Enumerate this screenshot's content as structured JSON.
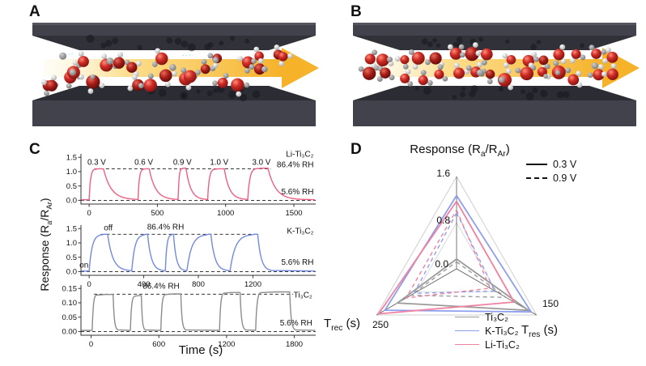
{
  "panels": {
    "a": {
      "label": "A"
    },
    "b": {
      "label": "B"
    },
    "c": {
      "label": "C",
      "y_axis_label": {
        "pre": "Response (R",
        "sub_a": "a",
        "mid": "/R",
        "sub_ar": "Ar",
        "post": ")"
      },
      "x_axis_label": "Time (s)"
    },
    "d": {
      "label": "D",
      "title": {
        "pre": "Response (R",
        "sub_a": "a",
        "mid": "/R",
        "sub_ar": "Ar",
        "post": ")"
      },
      "axis_trec": {
        "pre": "T",
        "sub": "rec",
        "post": " (s)"
      },
      "axis_tres": {
        "pre": "T",
        "sub": "res",
        "post": " (s)"
      },
      "response_ticks": [
        "1.6",
        "0.8",
        "0.0"
      ],
      "tres_tick": "150",
      "trec_tick": "250",
      "voltage_legend": [
        {
          "label": "0.3 V",
          "style": "solid"
        },
        {
          "label": "0.9 V",
          "style": "dashed"
        }
      ],
      "material_legend": [
        {
          "label": "Ti₃C₂",
          "color": "#9b9b9b"
        },
        {
          "label": "K-Ti₃C₂",
          "color": "#8e9ff0"
        },
        {
          "label": "Li-Ti₃C₂",
          "color": "#f082a0"
        }
      ]
    }
  },
  "illustration": {
    "arrow_color": "#f6b32a",
    "slab_color": "#41424b",
    "wedge_color": "#303139",
    "oxygen_color": "#cf2b24",
    "hydrogen_color": "#ececec",
    "gray_atom_color": "#9a9a9a",
    "panel_a": {
      "molecule_count": 24,
      "layout": "scatter",
      "seed": 7
    },
    "panel_b": {
      "molecule_count": 30,
      "layout": "rows",
      "seed": 13
    }
  },
  "chart_data": [
    {
      "id": "li_ti3c2_response",
      "type": "line",
      "series_name": "Li-Ti₃C₂",
      "color": "#ed5f84",
      "xlim": [
        -60,
        1660
      ],
      "ylim": [
        -0.13,
        1.62
      ],
      "xticks": [
        0,
        500,
        1000,
        1500
      ],
      "yticks": [
        0,
        0.5,
        1.0,
        1.5
      ],
      "ytick_labels": [
        "0.0",
        "0.5",
        "1.0",
        "1.5"
      ],
      "high_level": 1.1,
      "base_level": 0.02,
      "high_label": "86.4% RH",
      "low_label": "5.6% RH",
      "high_dash_span": [
        40,
        1330
      ],
      "base_dash_span": [
        -60,
        1660
      ],
      "pulses": [
        [
          0,
          40,
          105,
          350,
          1.1
        ],
        [
          358,
          395,
          440,
          645,
          1.1
        ],
        [
          652,
          678,
          710,
          860,
          1.12
        ],
        [
          868,
          915,
          990,
          1155,
          1.1
        ],
        [
          1162,
          1220,
          1310,
          1560,
          1.12
        ]
      ],
      "peak_labels": [
        {
          "text": "0.3 V",
          "x": 55
        },
        {
          "text": "0.6 V",
          "x": 400
        },
        {
          "text": "0.9 V",
          "x": 683
        },
        {
          "text": "1.0 V",
          "x": 953
        },
        {
          "text": "3.0 V",
          "x": 1262
        }
      ],
      "annotations": [
        {
          "text": "Li-Ti₃C₂",
          "x": 1645,
          "y": 1.52,
          "anchor": "end"
        },
        {
          "text": "86.4% RH",
          "x": 1645,
          "y": 1.16,
          "anchor": "end"
        },
        {
          "text": "5.6% RH",
          "x": 1645,
          "y": 0.21,
          "anchor": "end"
        }
      ]
    },
    {
      "id": "k_ti3c2_response",
      "type": "line",
      "series_name": "K-Ti₃C₂",
      "color": "#7289e0",
      "xlim": [
        -60,
        1660
      ],
      "ylim": [
        -0.13,
        1.62
      ],
      "xticks": [
        0,
        400,
        800,
        1200
      ],
      "yticks": [
        0,
        0.5,
        1.0,
        1.5
      ],
      "ytick_labels": [
        "0.0",
        "0.5",
        "1.0",
        "1.5"
      ],
      "high_level": 1.3,
      "base_level": 0.02,
      "high_label": "86.4% RH",
      "low_label": "5.6% RH",
      "high_dash_span": [
        85,
        1245
      ],
      "base_dash_span": [
        -60,
        1660
      ],
      "pulses": [
        [
          0,
          85,
          135,
          305,
          1.3
        ],
        [
          312,
          400,
          428,
          548,
          1.3
        ],
        [
          558,
          600,
          618,
          708,
          1.3
        ],
        [
          716,
          855,
          892,
          1022,
          1.3
        ],
        [
          1032,
          1185,
          1235,
          1345,
          1.3
        ]
      ],
      "peak_labels": [],
      "annotations": [
        {
          "text": "off",
          "x": 140,
          "y": 1.44,
          "anchor": "middle"
        },
        {
          "text": "on",
          "x": -38,
          "y": 0.14,
          "anchor": "middle"
        },
        {
          "text": "86.4% RH",
          "x": 560,
          "y": 1.46,
          "anchor": "middle"
        },
        {
          "text": "K-Ti₃C₂",
          "x": 1645,
          "y": 1.33,
          "anchor": "end"
        },
        {
          "text": "5.6% RH",
          "x": 1645,
          "y": 0.23,
          "anchor": "end"
        }
      ]
    },
    {
      "id": "ti3c2_response",
      "type": "line",
      "series_name": "Ti₃C₂",
      "color": "#8c8c8c",
      "xlim": [
        -90,
        1990
      ],
      "ylim": [
        -0.013,
        0.162
      ],
      "xticks": [
        0,
        600,
        1200,
        1800
      ],
      "yticks": [
        0,
        0.05,
        0.1,
        0.15
      ],
      "ytick_labels": [
        "0.00",
        "0.05",
        "0.10",
        "0.15"
      ],
      "high_level": 0.13,
      "base_level": 0.004,
      "high_label": "86.4% RH",
      "low_label": "5.6% RH",
      "high_dash_span": [
        25,
        1790
      ],
      "base_dash_span": [
        -90,
        1990
      ],
      "pulses": [
        [
          10,
          45,
          195,
          240,
          0.129
        ],
        [
          348,
          385,
          445,
          482,
          0.125
        ],
        [
          618,
          655,
          795,
          840,
          0.131
        ],
        [
          1138,
          1175,
          1320,
          1372,
          0.136
        ],
        [
          1458,
          1502,
          1760,
          1812,
          0.138
        ]
      ],
      "peak_labels": [],
      "annotations": [
        {
          "text": "86.4% RH",
          "x": 620,
          "y": 0.149,
          "anchor": "middle"
        },
        {
          "text": "Ti₃C₂",
          "x": 1960,
          "y": 0.118,
          "anchor": "end"
        },
        {
          "text": "5.6% RH",
          "x": 1960,
          "y": 0.021,
          "anchor": "end"
        }
      ],
      "xlabel": "Time (s)"
    },
    {
      "id": "radar_comparison",
      "type": "radar",
      "title": "Response (Ra/RAr)",
      "axes": [
        {
          "key": "response",
          "label": "Response (Ra/RAr)",
          "max": 1.6,
          "ticks": [
            0.0,
            0.8,
            1.6
          ]
        },
        {
          "key": "t_res",
          "label": "Tres (s)",
          "max": 150,
          "ticks": [
            150
          ]
        },
        {
          "key": "t_rec",
          "label": "Trec (s)",
          "max": 250,
          "ticks": [
            250
          ]
        }
      ],
      "grid_levels": [
        0.5,
        1.0
      ],
      "series": [
        {
          "name": "Ti₃C₂",
          "voltage": "0.3 V",
          "style": "solid",
          "color": "#9b9b9b",
          "values": {
            "response": 0.17,
            "t_res": 135,
            "t_rec": 185
          }
        },
        {
          "name": "K-Ti₃C₂",
          "voltage": "0.3 V",
          "style": "solid",
          "color": "#8e9ff0",
          "values": {
            "response": 1.27,
            "t_res": 140,
            "t_rec": 224
          }
        },
        {
          "name": "Li-Ti₃C₂",
          "voltage": "0.3 V",
          "style": "solid",
          "color": "#f082a0",
          "values": {
            "response": 1.17,
            "t_res": 108,
            "t_rec": 244
          }
        },
        {
          "name": "Ti₃C₂",
          "voltage": "0.9 V",
          "style": "dashed",
          "color": "#9b9b9b",
          "values": {
            "response": 0.12,
            "t_res": 93,
            "t_rec": 143
          }
        },
        {
          "name": "K-Ti₃C₂",
          "voltage": "0.9 V",
          "style": "dashed",
          "color": "#8e9ff0",
          "values": {
            "response": 0.97,
            "t_res": 72,
            "t_rec": 133
          }
        },
        {
          "name": "Li-Ti₃C₂",
          "voltage": "0.9 V",
          "style": "dashed",
          "color": "#f082a0",
          "values": {
            "response": 1.02,
            "t_res": 63,
            "t_rec": 158
          }
        }
      ]
    }
  ]
}
